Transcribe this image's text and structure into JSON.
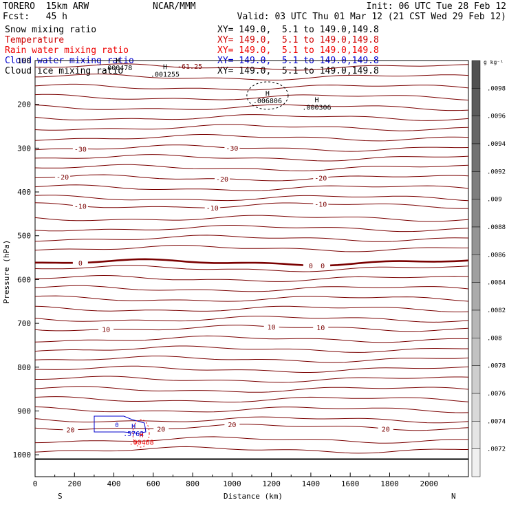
{
  "header": {
    "model": "TORERO  15km ARW",
    "center": "NCAR/MMM",
    "init": "Init: 06 UTC Tue 28 Feb 12",
    "fcst": "Fcst:   45 h",
    "valid": "Valid: 03 UTC Thu 01 Mar 12 (21 CST Wed 29 Feb 12)"
  },
  "fields": [
    {
      "label": "Snow mixing ratio",
      "xy": "XY= 149.0,  5.1 to 149.0,149.8",
      "color": "#000000"
    },
    {
      "label": "Temperature",
      "xy": "XY= 149.0,  5.1 to 149.0,149.8",
      "color": "#cc0000"
    },
    {
      "label": "Rain water mixing ratio",
      "xy": "XY= 149.0,  5.1 to 149.0,149.8",
      "color": "#ee0000"
    },
    {
      "label": "Cloud water mixing ratio",
      "xy": "XY= 149.0,  5.1 to 149.0,149.8",
      "color": "#0000cc"
    },
    {
      "label": "Cloud ice mixing ratio",
      "xy": "XY= 149.0,  5.1 to 149.0,149.8",
      "color": "#000000"
    }
  ],
  "colorbar": {
    "unit": "g kg⁻¹",
    "labels": [
      ".0098",
      ".0096",
      ".0094",
      ".0092",
      ".009",
      ".0088",
      ".0086",
      ".0084",
      ".0082",
      ".008",
      ".0078",
      ".0076",
      ".0074",
      ".0072"
    ]
  },
  "chart_data": {
    "type": "contour",
    "xlabel": "Distance (km)",
    "ylabel": "Pressure (hPa)",
    "xlim": [
      0,
      2200
    ],
    "ylim": [
      1050,
      100
    ],
    "x_ticks": [
      0,
      200,
      400,
      600,
      800,
      1000,
      1200,
      1400,
      1600,
      1800,
      2000
    ],
    "y_ticks": [
      100,
      200,
      300,
      400,
      500,
      600,
      700,
      800,
      900,
      1000
    ],
    "start_label": "S",
    "end_label": "N",
    "temperature_contours": [
      {
        "label": "-30",
        "p": 300,
        "labels_at": [
          230,
          1000
        ]
      },
      {
        "label": "-20",
        "p": 368,
        "labels_at": [
          140,
          950,
          1450
        ]
      },
      {
        "label": "-10",
        "p": 431,
        "labels_at": [
          230,
          900,
          1450
        ]
      },
      {
        "label": "0",
        "p": 561,
        "labels_at": [
          230,
          1400,
          1460
        ]
      },
      {
        "label": "10",
        "p": 711,
        "labels_at": [
          360,
          1200,
          1450
        ]
      },
      {
        "label": "20",
        "p": 937,
        "labels_at": [
          180,
          640,
          1000,
          1780
        ]
      }
    ],
    "temperature_annotation": "-61.25",
    "annotations": [
      {
        "kind": "H",
        "value": ".000478",
        "x": 420,
        "p": 105,
        "field": "snow"
      },
      {
        "kind": "H",
        "value": ".001255",
        "x": 660,
        "p": 120,
        "field": "snow"
      },
      {
        "kind": "H",
        "value": ".006806",
        "x": 1180,
        "p": 180,
        "field": "snow"
      },
      {
        "kind": "H",
        "value": ".000306",
        "x": 1430,
        "p": 195,
        "field": "cloud_ice"
      },
      {
        "kind": "H",
        "value": ".5762",
        "x": 500,
        "p": 940,
        "field": "cloud_water"
      },
      {
        "kind": "H",
        "value": ".00468",
        "x": 540,
        "p": 960,
        "field": "rain"
      }
    ],
    "cloud_water_contour_value": "0"
  }
}
